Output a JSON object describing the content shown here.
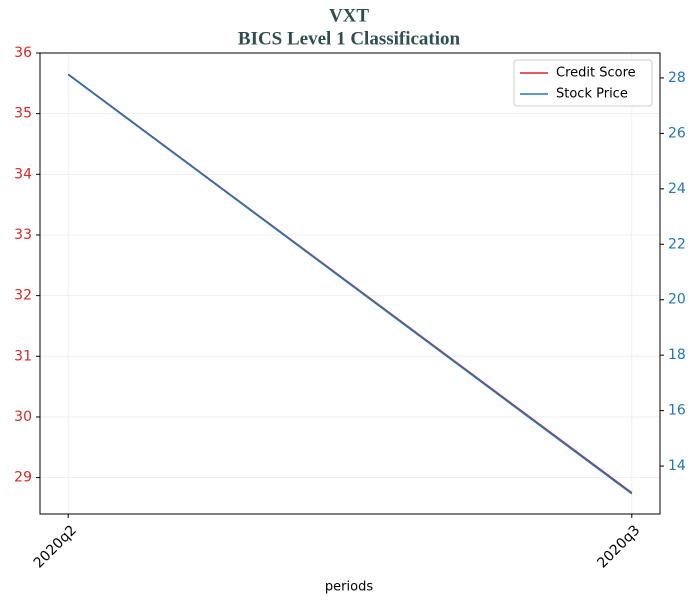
{
  "chart_data": {
    "type": "line",
    "title": "VXT",
    "subtitle": "BICS Level 1 Classification",
    "x_label": "periods",
    "categories": [
      "2020q2",
      "2020q3"
    ],
    "series": [
      {
        "name": "Credit Score",
        "color": "#d62728",
        "values": [
          35.65,
          28.75
        ]
      },
      {
        "name": "Stock Price",
        "color": "#1f77b4",
        "values": [
          28.12,
          13.0
        ],
        "axis": "y2"
      }
    ],
    "ylim": [
      28.4,
      36.0
    ],
    "yticks": [
      29,
      30,
      31,
      32,
      33,
      34,
      35,
      36
    ],
    "y2lim": [
      12.27,
      28.9
    ],
    "y2ticks": [
      14,
      16,
      18,
      20,
      22,
      24,
      26,
      28
    ],
    "grid": true,
    "legend": "upper right"
  }
}
